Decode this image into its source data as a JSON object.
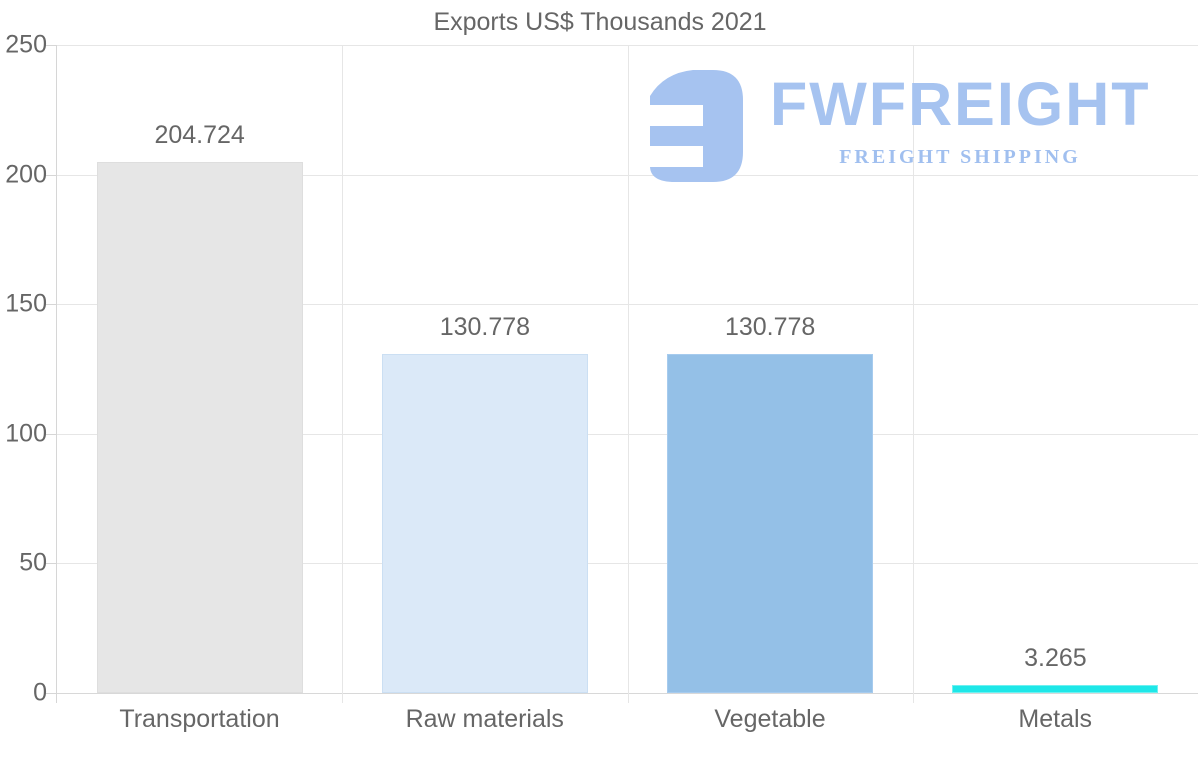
{
  "title": "Exports US$ Thousands 2021",
  "watermark": {
    "brand": "FWFREIGHT",
    "tagline": "FREIGHT SHIPPING",
    "color": "#a6c3f0"
  },
  "chart_data": {
    "type": "bar",
    "title": "Exports US$ Thousands 2021",
    "categories": [
      "Transportation",
      "Raw materials",
      "Vegetable",
      "Metals"
    ],
    "values": [
      204.724,
      130.778,
      130.778,
      3.265
    ],
    "value_labels": [
      "204.724",
      "130.778",
      "130.778",
      "3.265"
    ],
    "bar_colors": [
      "#e6e6e6",
      "#dbe9f8",
      "#94c0e7",
      "#1ee7e8"
    ],
    "bar_border_colors": [
      "#dedede",
      "#cbdff3",
      "#a6cbee",
      "#6ff0f0"
    ],
    "xlabel": "",
    "ylabel": "",
    "ylim": [
      0,
      250
    ],
    "yticks": [
      0,
      50,
      100,
      150,
      200,
      250
    ],
    "grid": true,
    "legend": false,
    "text_color": "#666666",
    "gridline_color": "#e6e6e6",
    "axis_color": "#d6d6d6"
  }
}
